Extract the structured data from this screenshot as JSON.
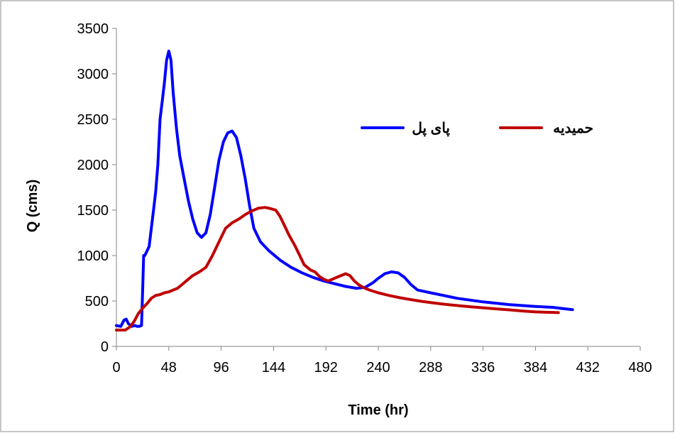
{
  "chart_data": {
    "type": "line",
    "title": "",
    "xlabel": "Time (hr)",
    "ylabel": "Q (cms)",
    "xlim": [
      0,
      480
    ],
    "ylim": [
      0,
      3500
    ],
    "xticks": [
      0,
      48,
      96,
      144,
      192,
      240,
      288,
      336,
      384,
      432,
      480
    ],
    "yticks": [
      0,
      500,
      1000,
      1500,
      2000,
      2500,
      3000,
      3500
    ],
    "grid": false,
    "legend_position": "top-right-inside",
    "series": [
      {
        "name": "پای پل",
        "color": "#0000ff",
        "x": [
          0,
          4,
          7,
          9,
          11,
          14,
          17,
          19,
          21,
          23,
          24,
          25,
          26,
          28,
          30,
          32,
          34,
          36,
          38,
          40,
          42,
          44,
          46,
          48,
          50,
          52,
          55,
          58,
          62,
          66,
          70,
          74,
          78,
          82,
          86,
          90,
          94,
          98,
          102,
          106,
          110,
          114,
          118,
          122,
          126,
          132,
          140,
          150,
          160,
          170,
          180,
          190,
          200,
          210,
          220,
          228,
          235,
          240,
          246,
          252,
          258,
          264,
          270,
          276,
          288,
          300,
          312,
          336,
          360,
          384,
          400,
          410,
          418
        ],
        "y": [
          230,
          220,
          290,
          300,
          250,
          220,
          230,
          220,
          220,
          230,
          600,
          1000,
          1000,
          1050,
          1100,
          1300,
          1500,
          1700,
          2000,
          2500,
          2700,
          2900,
          3150,
          3250,
          3150,
          2800,
          2400,
          2100,
          1850,
          1600,
          1400,
          1250,
          1200,
          1250,
          1450,
          1750,
          2050,
          2250,
          2350,
          2370,
          2300,
          2100,
          1850,
          1550,
          1300,
          1150,
          1050,
          950,
          870,
          810,
          760,
          720,
          690,
          660,
          640,
          650,
          700,
          750,
          800,
          820,
          810,
          760,
          680,
          620,
          590,
          560,
          530,
          490,
          460,
          440,
          430,
          415,
          405
        ]
      },
      {
        "name": "حمیدیه",
        "color": "#c00000",
        "x": [
          0,
          8,
          12,
          16,
          20,
          24,
          28,
          32,
          36,
          40,
          44,
          48,
          52,
          56,
          60,
          64,
          70,
          76,
          82,
          88,
          94,
          100,
          106,
          112,
          118,
          124,
          130,
          136,
          140,
          146,
          150,
          154,
          158,
          164,
          172,
          178,
          182,
          186,
          190,
          194,
          198,
          204,
          210,
          214,
          218,
          222,
          226,
          232,
          240,
          250,
          260,
          270,
          280,
          290,
          300,
          312,
          324,
          336,
          348,
          360,
          372,
          384,
          396,
          405
        ],
        "y": [
          180,
          180,
          210,
          270,
          360,
          420,
          470,
          530,
          560,
          570,
          590,
          600,
          620,
          640,
          680,
          720,
          780,
          820,
          870,
          1000,
          1150,
          1300,
          1360,
          1400,
          1450,
          1490,
          1520,
          1530,
          1520,
          1500,
          1430,
          1330,
          1230,
          1100,
          900,
          840,
          820,
          770,
          740,
          720,
          740,
          770,
          800,
          780,
          720,
          680,
          650,
          620,
          590,
          560,
          535,
          515,
          495,
          480,
          465,
          450,
          437,
          425,
          413,
          402,
          390,
          380,
          375,
          372
        ]
      }
    ]
  }
}
